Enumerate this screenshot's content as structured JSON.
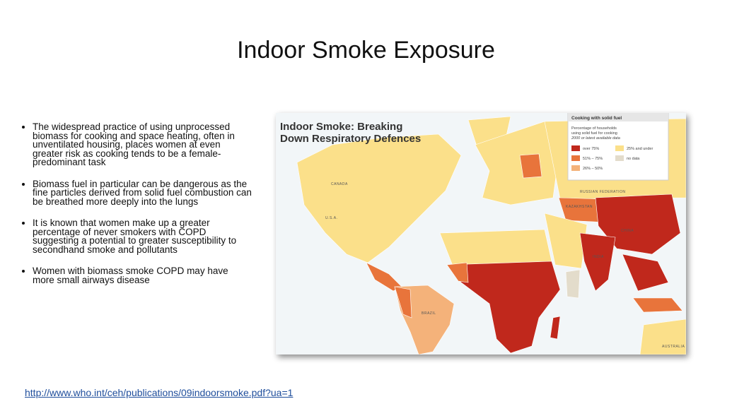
{
  "title": "Indoor Smoke Exposure",
  "bullets": [
    "The widespread practice of using unprocessed biomass for cooking and space heating, often in unventilated housing, places women at even greater risk as cooking tends to be a female-predominant task",
    "Biomass fuel in particular can be dangerous as the fine particles derived from solid fuel combustion can be breathed more deeply into the lungs",
    "It is known that women make up a greater percentage of never smokers with COPD suggesting a potential to greater susceptibility to secondhand smoke and pollutants",
    "Women with biomass smoke COPD may have more small airways disease"
  ],
  "figure": {
    "title_line1": "Indoor Smoke: Breaking",
    "title_line2": "Down Respiratory Defences",
    "legend": {
      "heading": "Cooking with solid fuel",
      "description_line1": "Percentage of households",
      "description_line2": "using solid fuel for cooking",
      "note": "2000 or latest available data",
      "items": [
        {
          "label": "over 75%",
          "color": "#c0281c"
        },
        {
          "label": "51% – 75%",
          "color": "#e8743b"
        },
        {
          "label": "26% – 50%",
          "color": "#f4b27a"
        },
        {
          "label": "25% and under",
          "color": "#fbe08a"
        },
        {
          "label": "no data",
          "color": "#e3dccb"
        }
      ]
    },
    "labels": {
      "canada": "CANADA",
      "usa": "U.S.A.",
      "brazil": "BRAZIL",
      "russia": "RUSSIAN FEDERATION",
      "kazakhstan": "KAZAKHSTAN",
      "china": "CHINA",
      "india": "INDIA",
      "australia": "AUSTRALIA"
    }
  },
  "link": "http://www.who.int/ceh/publications/09indoorsmoke.pdf?ua=1"
}
